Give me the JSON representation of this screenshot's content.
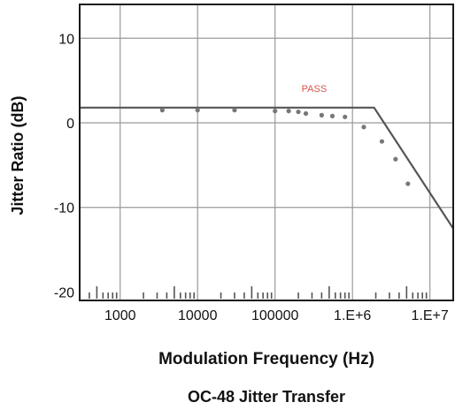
{
  "chart_data": {
    "type": "line",
    "title": "OC-48 Jitter Transfer",
    "xlabel": "Modulation Frequency (Hz)",
    "ylabel": "Jitter Ratio (dB)",
    "x_scale": "log",
    "xlim": [
      300,
      20000000
    ],
    "ylim": [
      -21,
      14
    ],
    "x_tick_values": [
      1000,
      10000,
      100000,
      1000000,
      10000000
    ],
    "x_tick_labels": [
      "1000",
      "10000",
      "100000",
      "1.E+6",
      "1.E+7"
    ],
    "y_ticks": [
      10,
      0,
      -10,
      -20
    ],
    "grid": true,
    "annotations": [
      {
        "text": "PASS",
        "color": "#d9534f"
      }
    ],
    "series": [
      {
        "style": "line",
        "x": [
          300,
          1000,
          10000,
          100000,
          1000000,
          1900000,
          20000000
        ],
        "y": [
          1.8,
          1.8,
          1.8,
          1.8,
          1.8,
          1.8,
          -12.5
        ]
      },
      {
        "style": "markers",
        "x": [
          3500,
          10000,
          30000,
          100000,
          150000,
          200000,
          250000,
          400000,
          550000,
          800000,
          1400000,
          2400000,
          3600000,
          5200000
        ],
        "y": [
          1.5,
          1.5,
          1.5,
          1.4,
          1.4,
          1.3,
          1.1,
          0.9,
          0.8,
          0.7,
          -0.5,
          -2.2,
          -4.3,
          -7.2
        ]
      }
    ],
    "colors": {
      "axes": "#1a1a1a",
      "grid": "#9a9a9a",
      "line": "#555555",
      "marker": "#777777",
      "pass": "#d9534f"
    }
  }
}
